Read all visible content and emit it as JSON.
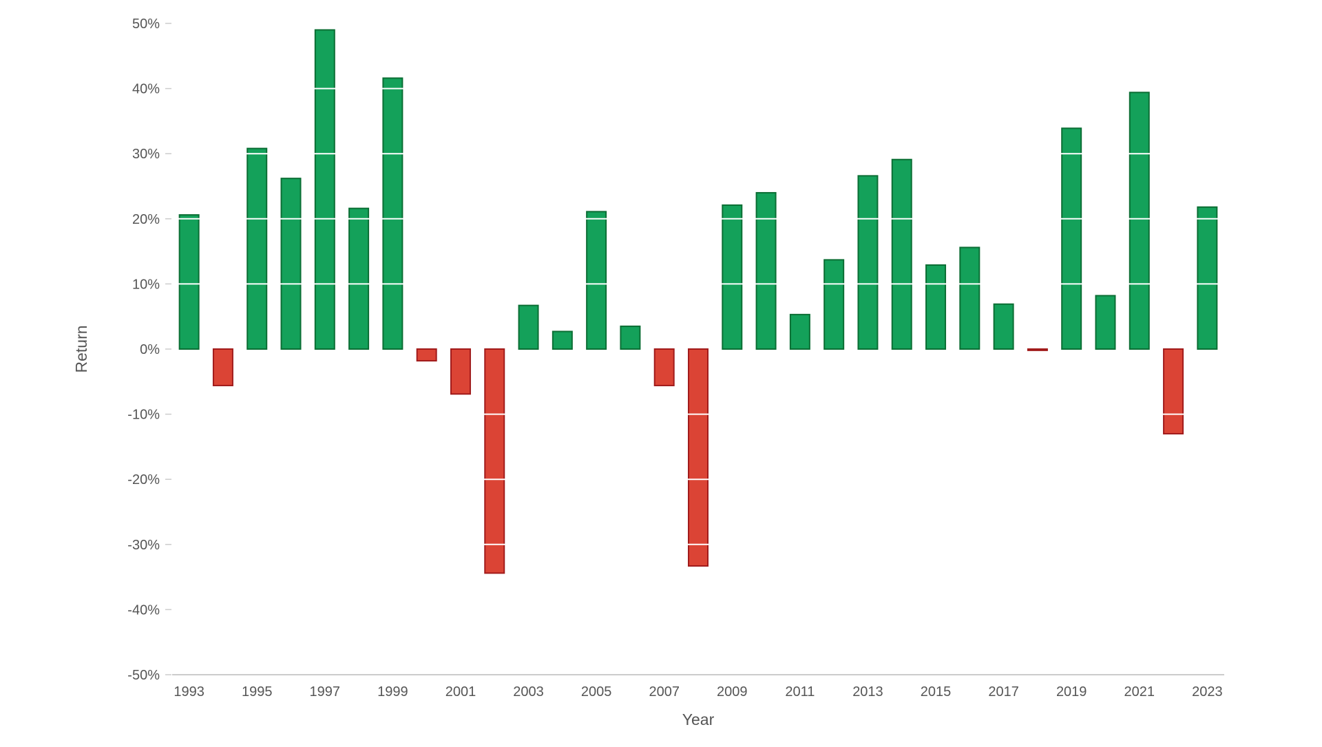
{
  "chart_data": {
    "type": "bar",
    "title": "",
    "xlabel": "Year",
    "ylabel": "Return",
    "ylim": [
      -50,
      50
    ],
    "yticks": [
      50,
      40,
      30,
      20,
      10,
      0,
      -10,
      -20,
      -30,
      -40,
      -50
    ],
    "ytick_labels": [
      "50%",
      "40%",
      "30%",
      "20%",
      "10%",
      "0%",
      "-10%",
      "-20%",
      "-30%",
      "-40%",
      "-50%"
    ],
    "categories": [
      "1993",
      "1994",
      "1995",
      "1996",
      "1997",
      "1998",
      "1999",
      "2000",
      "2001",
      "2002",
      "2003",
      "2004",
      "2005",
      "2006",
      "2007",
      "2008",
      "2009",
      "2010",
      "2011",
      "2012",
      "2013",
      "2014",
      "2015",
      "2016",
      "2017",
      "2018",
      "2019",
      "2020",
      "2021",
      "2022",
      "2023"
    ],
    "xtick_labels": [
      "1993",
      "",
      "1995",
      "",
      "1997",
      "",
      "1999",
      "",
      "2001",
      "",
      "2003",
      "",
      "2005",
      "",
      "2007",
      "",
      "2009",
      "",
      "2011",
      "",
      "2013",
      "",
      "2015",
      "",
      "2017",
      "",
      "2019",
      "",
      "2021",
      "",
      "2023"
    ],
    "values": [
      20.6,
      -5.6,
      30.8,
      26.2,
      49.0,
      21.6,
      41.6,
      -1.8,
      -6.9,
      -34.4,
      6.7,
      2.7,
      21.1,
      3.5,
      -5.6,
      -33.3,
      22.1,
      24.0,
      5.3,
      13.7,
      26.6,
      29.1,
      12.9,
      15.6,
      6.9,
      -0.2,
      33.9,
      8.2,
      39.4,
      -13.0,
      21.8
    ],
    "grid": true,
    "legend": "none",
    "colors": {
      "positive_fill": "#14a15a",
      "positive_stroke": "#0b6e34",
      "negative_fill": "#db4435",
      "negative_stroke": "#a11b1b",
      "gridline": "#ffffff",
      "axis": "#cccccc",
      "text": "#555555"
    }
  }
}
